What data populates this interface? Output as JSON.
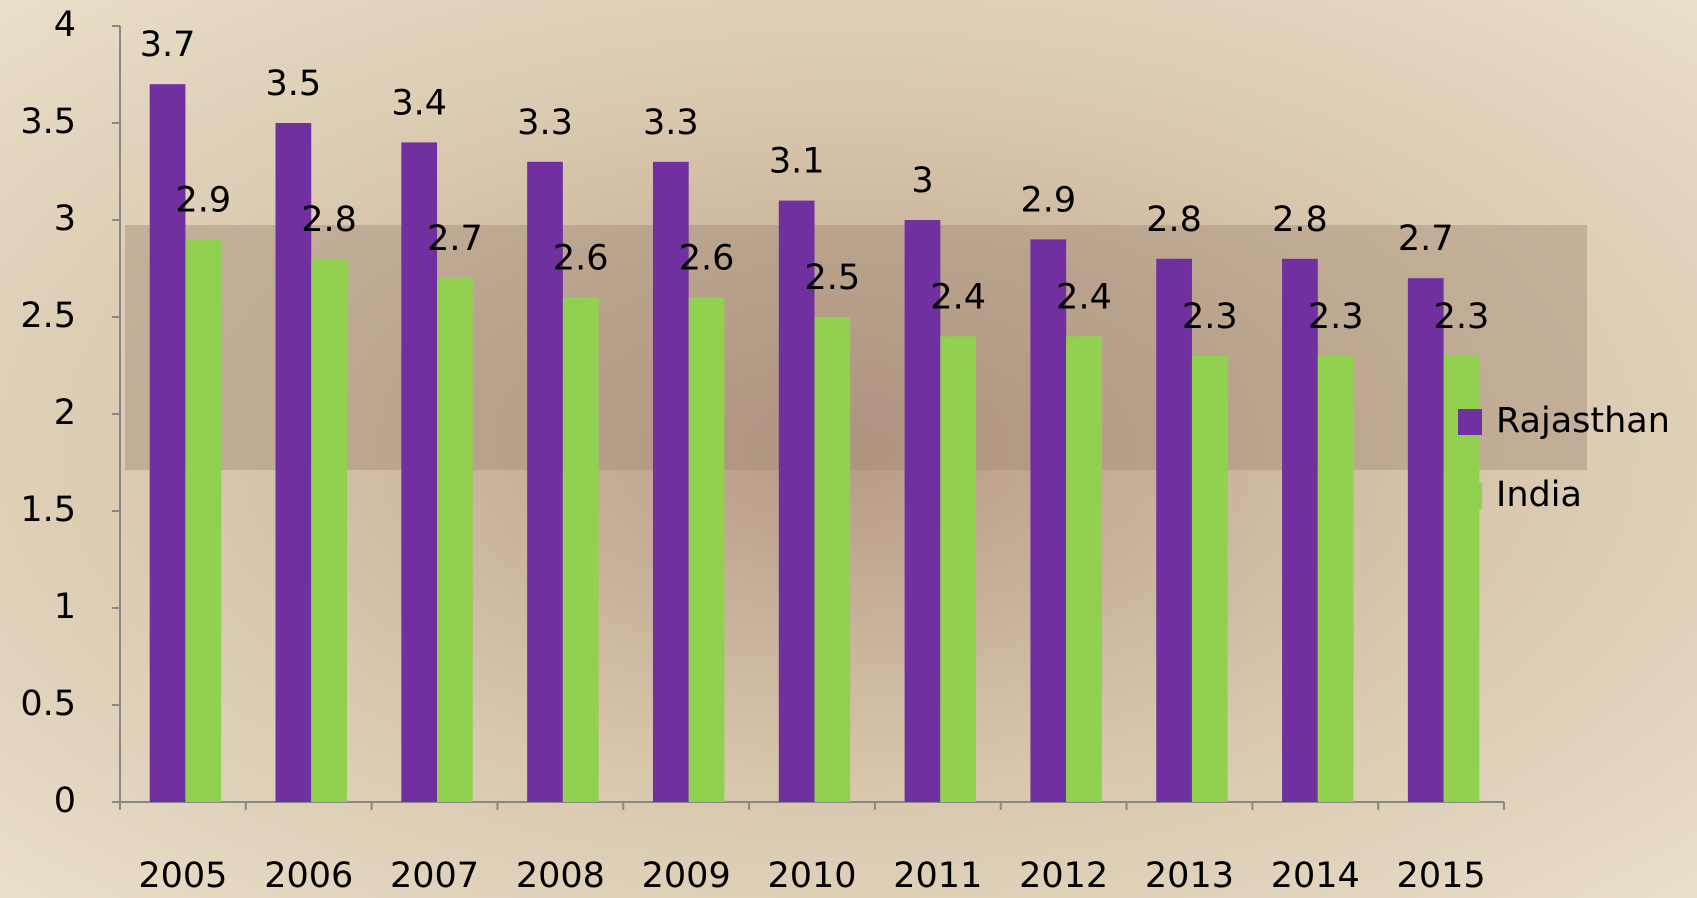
{
  "chart_data": {
    "type": "bar",
    "categories": [
      "2005",
      "2006",
      "2007",
      "2008",
      "2009",
      "2010",
      "2011",
      "2012",
      "2013",
      "2014",
      "2015"
    ],
    "series": [
      {
        "name": "Rajasthan",
        "color": "#7030a0",
        "values": [
          3.7,
          3.5,
          3.4,
          3.3,
          3.3,
          3.1,
          3,
          2.9,
          2.8,
          2.8,
          2.7
        ]
      },
      {
        "name": "India",
        "color": "#92d050",
        "values": [
          2.9,
          2.8,
          2.7,
          2.6,
          2.6,
          2.5,
          2.4,
          2.4,
          2.3,
          2.3,
          2.3
        ]
      }
    ],
    "ylim": [
      0,
      4
    ],
    "yticks": [
      0,
      0.5,
      1,
      1.5,
      2,
      2.5,
      3,
      3.5,
      4
    ],
    "grid": false,
    "legend": "right"
  }
}
